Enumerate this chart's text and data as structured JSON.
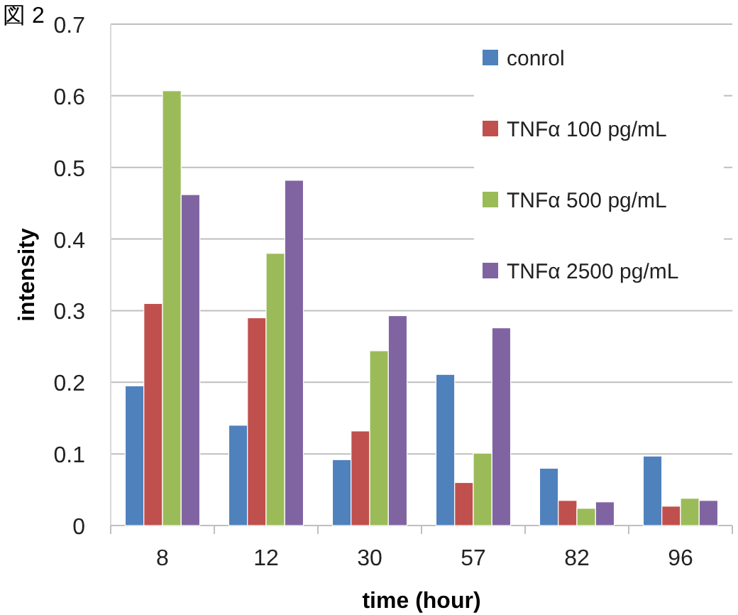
{
  "chart_data": {
    "type": "bar",
    "title": "図 2",
    "xlabel": "time (hour)",
    "ylabel": "intensity",
    "categories": [
      "8",
      "12",
      "30",
      "57",
      "82",
      "96"
    ],
    "series": [
      {
        "name": "conrol",
        "color": "#4f81bd",
        "values": [
          0.195,
          0.14,
          0.092,
          0.211,
          0.08,
          0.097
        ]
      },
      {
        "name": "TNFα 100 pg/mL",
        "color": "#c0504d",
        "values": [
          0.31,
          0.29,
          0.132,
          0.06,
          0.035,
          0.027
        ]
      },
      {
        "name": "TNFα 500 pg/mL",
        "color": "#9bbb59",
        "values": [
          0.607,
          0.38,
          0.244,
          0.101,
          0.024,
          0.038
        ]
      },
      {
        "name": "TNFα 2500 pg/mL",
        "color": "#8064a2",
        "values": [
          0.462,
          0.482,
          0.293,
          0.276,
          0.033,
          0.035
        ]
      }
    ],
    "ylim": [
      0,
      0.7
    ],
    "yticks": [
      0,
      0.1,
      0.2,
      0.3,
      0.4,
      0.5,
      0.6,
      0.7
    ],
    "grid": "y",
    "legend": "top right"
  }
}
